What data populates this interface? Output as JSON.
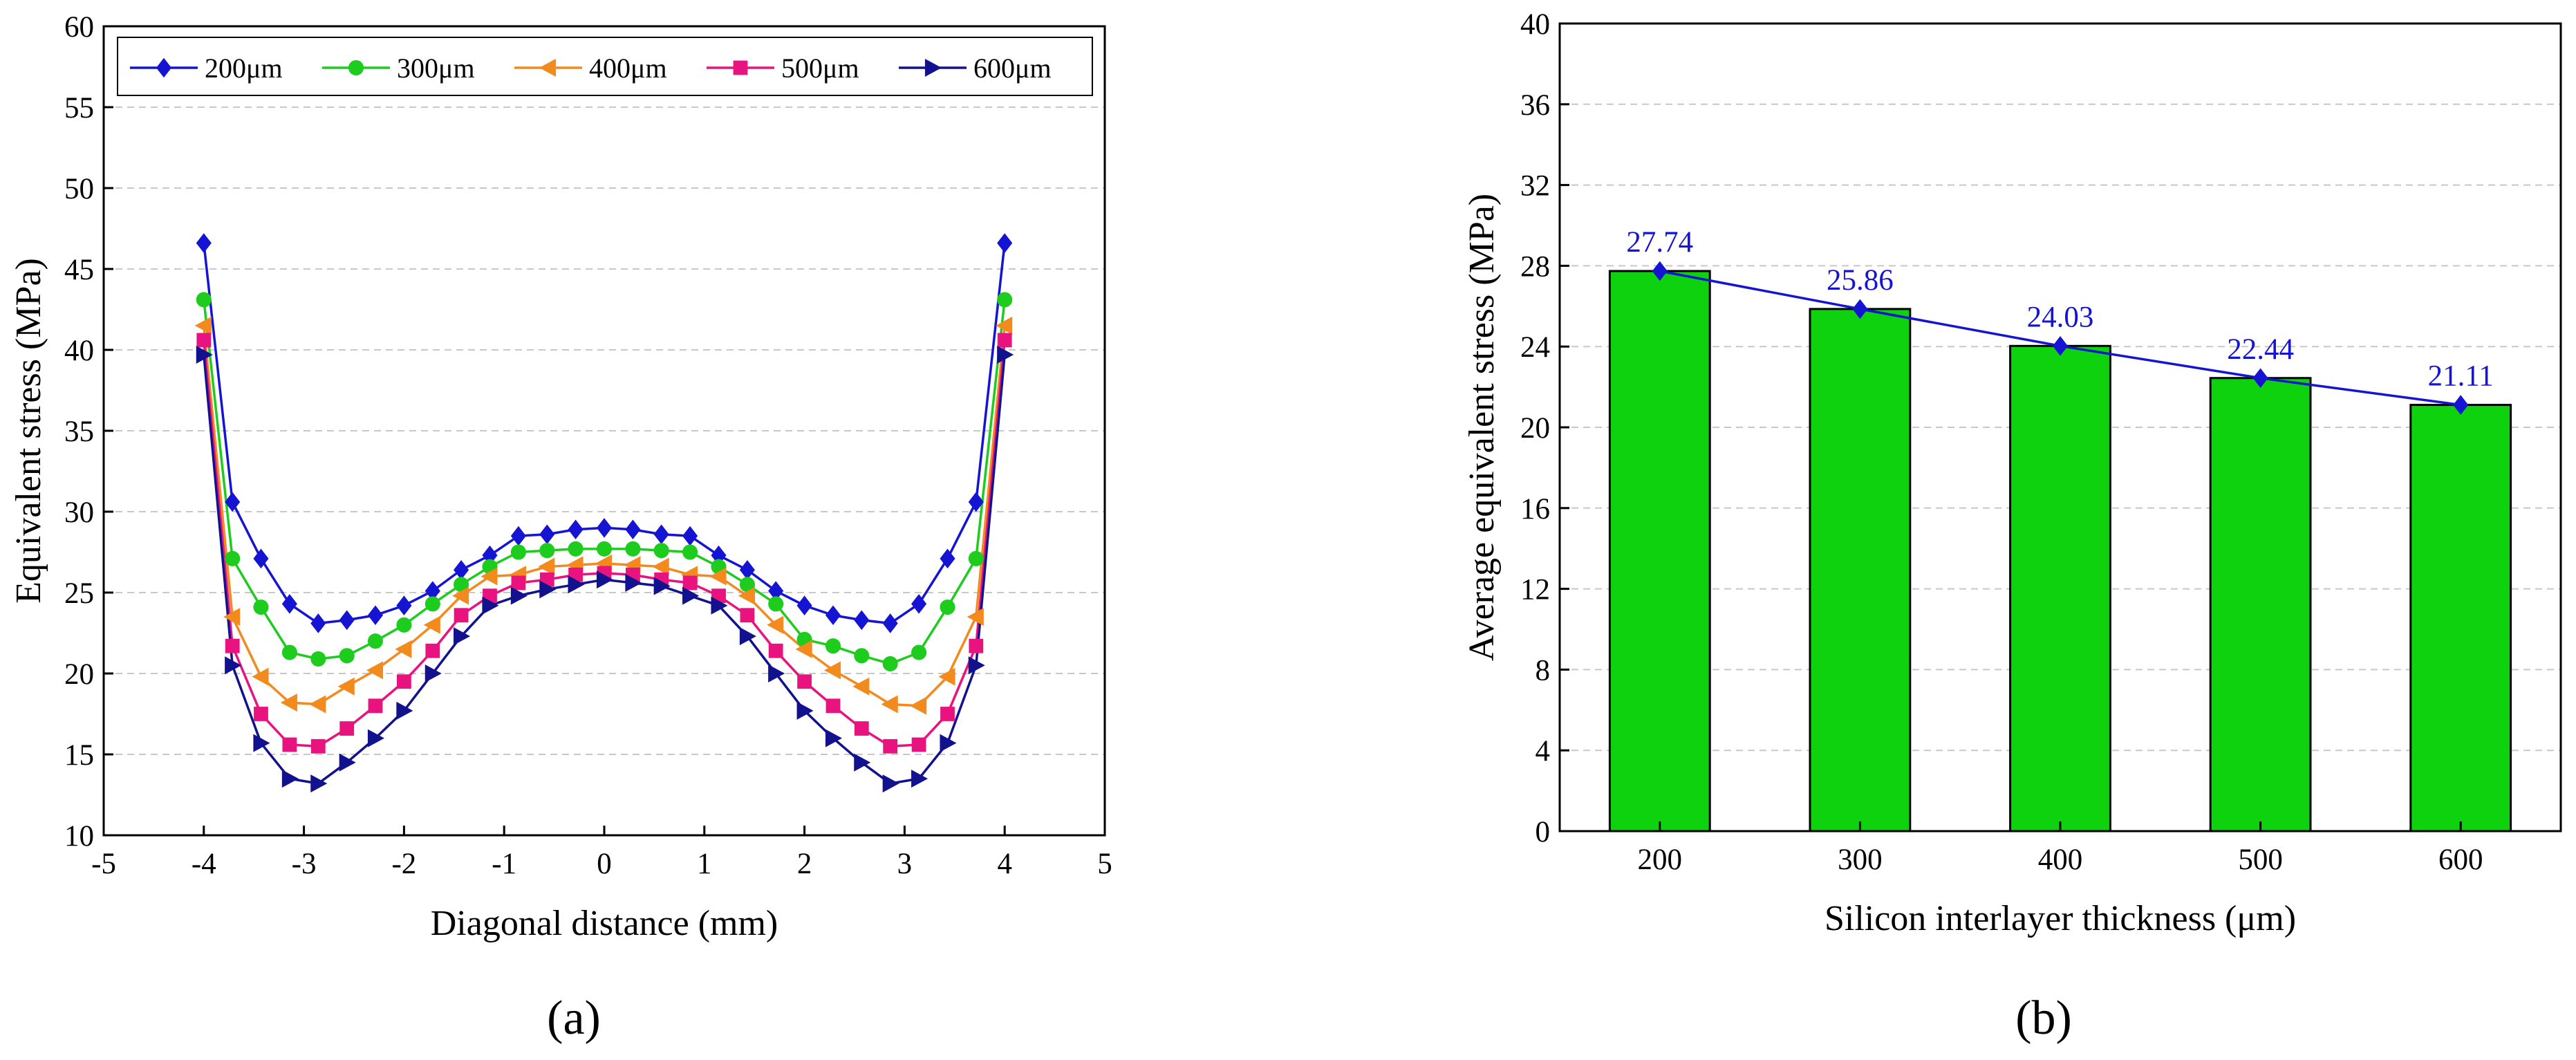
{
  "chart_data": [
    {
      "type": "line",
      "panel_label": "(a)",
      "xlabel": "Diagonal distance (mm)",
      "ylabel": "Equivalent stress (MPa)",
      "xlim": [
        -5,
        5
      ],
      "ylim": [
        10,
        60
      ],
      "xticks": [
        "-5",
        "-4",
        "-3",
        "-2",
        "-1",
        "0",
        "1",
        "2",
        "3",
        "4",
        "5"
      ],
      "yticks": [
        "10",
        "15",
        "20",
        "25",
        "30",
        "35",
        "40",
        "45",
        "50",
        "55",
        "60"
      ],
      "grid": "horizontal dashed",
      "legend_position": "top, horizontal",
      "x": [
        -4.0,
        -3.714,
        -3.429,
        -3.143,
        -2.857,
        -2.571,
        -2.286,
        -2.0,
        -1.714,
        -1.429,
        -1.143,
        -0.857,
        -0.571,
        -0.286,
        0.0,
        0.286,
        0.571,
        0.857,
        1.143,
        1.429,
        1.714,
        2.0,
        2.286,
        2.571,
        2.857,
        3.143,
        3.429,
        3.714,
        4.0
      ],
      "series": [
        {
          "name": "200μm",
          "color": "#1414d2",
          "marker": "diamond",
          "values": [
            46.6,
            30.6,
            27.1,
            24.3,
            23.1,
            23.3,
            23.6,
            24.2,
            25.1,
            26.4,
            27.3,
            28.5,
            28.6,
            28.9,
            29.0,
            28.9,
            28.6,
            28.5,
            27.3,
            26.4,
            25.1,
            24.2,
            23.6,
            23.3,
            23.1,
            24.3,
            27.1,
            30.6,
            46.6
          ]
        },
        {
          "name": "300μm",
          "color": "#1ecc1e",
          "marker": "circle",
          "values": [
            43.1,
            27.1,
            24.1,
            21.3,
            20.9,
            21.1,
            22.0,
            23.0,
            24.3,
            25.5,
            26.6,
            27.5,
            27.6,
            27.7,
            27.7,
            27.7,
            27.6,
            27.5,
            26.6,
            25.5,
            24.3,
            22.1,
            21.7,
            21.1,
            20.6,
            21.3,
            24.1,
            27.1,
            43.1
          ]
        },
        {
          "name": "400μm",
          "color": "#f28a1e",
          "marker": "triangle-left",
          "values": [
            41.5,
            23.5,
            19.8,
            18.2,
            18.1,
            19.2,
            20.2,
            21.5,
            23.0,
            24.8,
            26.0,
            26.1,
            26.6,
            26.7,
            26.8,
            26.7,
            26.6,
            26.1,
            26.0,
            24.8,
            23.0,
            21.5,
            20.2,
            19.2,
            18.1,
            18.0,
            19.8,
            23.5,
            41.5
          ]
        },
        {
          "name": "500μm",
          "color": "#e8137e",
          "marker": "square",
          "values": [
            40.6,
            21.7,
            17.5,
            15.6,
            15.5,
            16.6,
            18.0,
            19.5,
            21.4,
            23.6,
            24.8,
            25.6,
            25.8,
            26.1,
            26.2,
            26.1,
            25.8,
            25.6,
            24.8,
            23.6,
            21.4,
            19.5,
            18.0,
            16.6,
            15.5,
            15.6,
            17.5,
            21.7,
            40.6
          ]
        },
        {
          "name": "600μm",
          "color": "#12128e",
          "marker": "triangle-right",
          "values": [
            39.7,
            20.5,
            15.7,
            13.5,
            13.2,
            14.5,
            16.0,
            17.7,
            20.0,
            22.3,
            24.2,
            24.8,
            25.2,
            25.5,
            25.8,
            25.6,
            25.4,
            24.8,
            24.2,
            22.3,
            20.0,
            17.7,
            16.0,
            14.5,
            13.2,
            13.5,
            15.7,
            20.5,
            39.7
          ]
        }
      ]
    },
    {
      "type": "bar",
      "panel_label": "(b)",
      "xlabel": "Silicon interlayer thickness (μm)",
      "ylabel": "Average equivalent stress (MPa)",
      "categories": [
        "200",
        "300",
        "400",
        "500",
        "600"
      ],
      "values": [
        27.74,
        25.86,
        24.03,
        22.44,
        21.11
      ],
      "data_labels": [
        "27.74",
        "25.86",
        "24.03",
        "22.44",
        "21.11"
      ],
      "ylim": [
        0,
        40
      ],
      "yticks": [
        "0",
        "4",
        "8",
        "12",
        "16",
        "20",
        "24",
        "28",
        "32",
        "36",
        "40"
      ],
      "grid": "horizontal dashed",
      "bar_color": "#0fd20f",
      "line_overlay_color": "#1414d2",
      "line_overlay_marker": "diamond"
    }
  ]
}
